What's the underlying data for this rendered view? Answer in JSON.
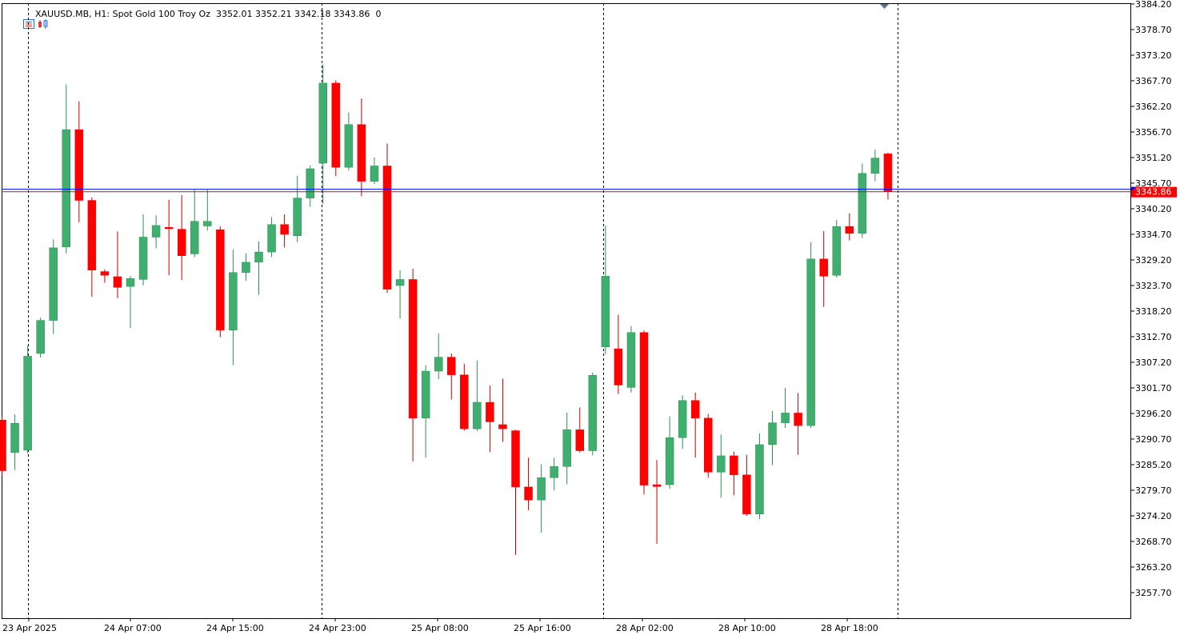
{
  "header": {
    "symbol": "XAUUSD.MB",
    "timeframe": "H1:",
    "description": "Spot Gold 100 Troy Oz",
    "ohlc": "3352.01 3352.21 3342.18 3343.86",
    "volume": "0"
  },
  "colors": {
    "bull": "#3fae6f",
    "bear": "#ff0000",
    "wick_bull": "#2f8f57",
    "wick_bear": "#cc0000",
    "price_line": "#ff0000",
    "ask_line": "#0000ff"
  },
  "chart_data": {
    "type": "candlestick",
    "ylim": [
      3252.2,
      3384.2
    ],
    "y_ticks": [
      "3384.20",
      "3378.70",
      "3373.20",
      "3367.70",
      "3362.20",
      "3356.70",
      "3351.20",
      "3345.70",
      "3340.20",
      "3334.70",
      "3329.20",
      "3323.70",
      "3318.20",
      "3312.70",
      "3307.20",
      "3301.70",
      "3296.20",
      "3290.70",
      "3285.20",
      "3279.70",
      "3274.20",
      "3268.70",
      "3263.20",
      "3257.70"
    ],
    "x_labels": [
      "23 Apr 2025",
      "24 Apr 07:00",
      "24 Apr 15:00",
      "24 Apr 23:00",
      "25 Apr 08:00",
      "25 Apr 16:00",
      "28 Apr 02:00",
      "28 Apr 10:00",
      "28 Apr 18:00"
    ],
    "current_price": "3343.86",
    "ask_price": 3344.4,
    "candles": [
      [
        3294.8,
        3295.4,
        3282.8,
        3283.9
      ],
      [
        3287.8,
        3296.0,
        3284.0,
        3294.1
      ],
      [
        3288.3,
        3310.8,
        3287.6,
        3308.5
      ],
      [
        3309.1,
        3316.8,
        3308.2,
        3316.2
      ],
      [
        3316.2,
        3333.6,
        3313.3,
        3331.8
      ],
      [
        3332.0,
        3366.9,
        3330.6,
        3357.2
      ],
      [
        3357.2,
        3363.3,
        3337.3,
        3342.0
      ],
      [
        3342.0,
        3342.6,
        3321.3,
        3327.0
      ],
      [
        3326.7,
        3327.2,
        3324.3,
        3325.9
      ],
      [
        3325.6,
        3335.3,
        3321.0,
        3323.3
      ],
      [
        3323.5,
        3325.8,
        3314.6,
        3325.2
      ],
      [
        3325.0,
        3339.0,
        3323.7,
        3334.1
      ],
      [
        3334.1,
        3338.8,
        3331.7,
        3336.6
      ],
      [
        3336.2,
        3342.1,
        3325.9,
        3335.9
      ],
      [
        3335.8,
        3343.1,
        3324.9,
        3330.1
      ],
      [
        3330.5,
        3344.3,
        3329.8,
        3337.5
      ],
      [
        3336.5,
        3344.3,
        3335.5,
        3337.5
      ],
      [
        3335.7,
        3336.4,
        3312.6,
        3314.1
      ],
      [
        3314.1,
        3331.4,
        3306.6,
        3326.5
      ],
      [
        3326.5,
        3330.6,
        3324.7,
        3328.7
      ],
      [
        3328.7,
        3333.2,
        3321.7,
        3330.9
      ],
      [
        3330.9,
        3338.4,
        3329.8,
        3336.8
      ],
      [
        3336.8,
        3339.0,
        3331.9,
        3334.7
      ],
      [
        3334.4,
        3347.3,
        3333.0,
        3342.5
      ],
      [
        3342.5,
        3349.5,
        3340.6,
        3348.8
      ],
      [
        3350.0,
        3371.2,
        3341.3,
        3367.2
      ],
      [
        3367.2,
        3367.8,
        3347.2,
        3349.1
      ],
      [
        3349.1,
        3360.9,
        3348.4,
        3358.3
      ],
      [
        3358.3,
        3363.9,
        3342.9,
        3346.1
      ],
      [
        3346.1,
        3351.2,
        3345.5,
        3349.4
      ],
      [
        3349.4,
        3354.2,
        3322.1,
        3322.9
      ],
      [
        3323.7,
        3327.0,
        3316.6,
        3325.0
      ],
      [
        3325.0,
        3327.3,
        3285.9,
        3295.2
      ],
      [
        3295.2,
        3306.6,
        3286.7,
        3305.3
      ],
      [
        3305.3,
        3313.4,
        3303.6,
        3308.3
      ],
      [
        3308.3,
        3309.1,
        3299.2,
        3304.5
      ],
      [
        3304.5,
        3306.9,
        3292.5,
        3292.9
      ],
      [
        3292.9,
        3307.6,
        3292.4,
        3298.6
      ],
      [
        3298.6,
        3302.2,
        3287.9,
        3294.4
      ],
      [
        3293.8,
        3303.7,
        3290.1,
        3292.9
      ],
      [
        3292.5,
        3292.7,
        3265.8,
        3280.4
      ],
      [
        3280.4,
        3286.7,
        3275.4,
        3277.6
      ],
      [
        3277.6,
        3285.3,
        3270.6,
        3282.4
      ],
      [
        3282.4,
        3286.7,
        3279.7,
        3284.8
      ],
      [
        3284.8,
        3296.4,
        3281.0,
        3292.7
      ],
      [
        3292.7,
        3297.5,
        3287.8,
        3288.2
      ],
      [
        3288.2,
        3305.0,
        3287.2,
        3304.4
      ],
      [
        3310.5,
        3336.6,
        3308.9,
        3325.7
      ],
      [
        3310.1,
        3317.4,
        3300.4,
        3302.3
      ],
      [
        3301.8,
        3315.0,
        3300.7,
        3313.6
      ],
      [
        3313.6,
        3314.0,
        3278.8,
        3280.8
      ],
      [
        3280.9,
        3286.2,
        3268.2,
        3280.5
      ],
      [
        3280.9,
        3295.6,
        3280.0,
        3291.0
      ],
      [
        3291.0,
        3300.1,
        3288.6,
        3299.0
      ],
      [
        3299.0,
        3300.7,
        3286.7,
        3295.2
      ],
      [
        3295.2,
        3296.1,
        3282.4,
        3283.6
      ],
      [
        3283.6,
        3291.7,
        3278.1,
        3287.1
      ],
      [
        3287.1,
        3288.0,
        3278.6,
        3283.0
      ],
      [
        3283.0,
        3287.3,
        3274.2,
        3274.6
      ],
      [
        3274.6,
        3291.9,
        3273.5,
        3289.5
      ],
      [
        3289.5,
        3296.7,
        3285.1,
        3294.2
      ],
      [
        3294.2,
        3301.7,
        3293.1,
        3296.3
      ],
      [
        3296.3,
        3300.6,
        3287.3,
        3293.6
      ],
      [
        3293.6,
        3333.0,
        3293.1,
        3329.4
      ],
      [
        3329.4,
        3335.4,
        3319.1,
        3325.7
      ],
      [
        3325.9,
        3337.8,
        3325.4,
        3336.4
      ],
      [
        3336.4,
        3339.2,
        3333.4,
        3334.9
      ],
      [
        3334.9,
        3349.9,
        3333.9,
        3347.8
      ],
      [
        3347.8,
        3352.9,
        3346.1,
        3351.1
      ],
      [
        3352.0,
        3352.2,
        3342.2,
        3343.9
      ]
    ]
  }
}
